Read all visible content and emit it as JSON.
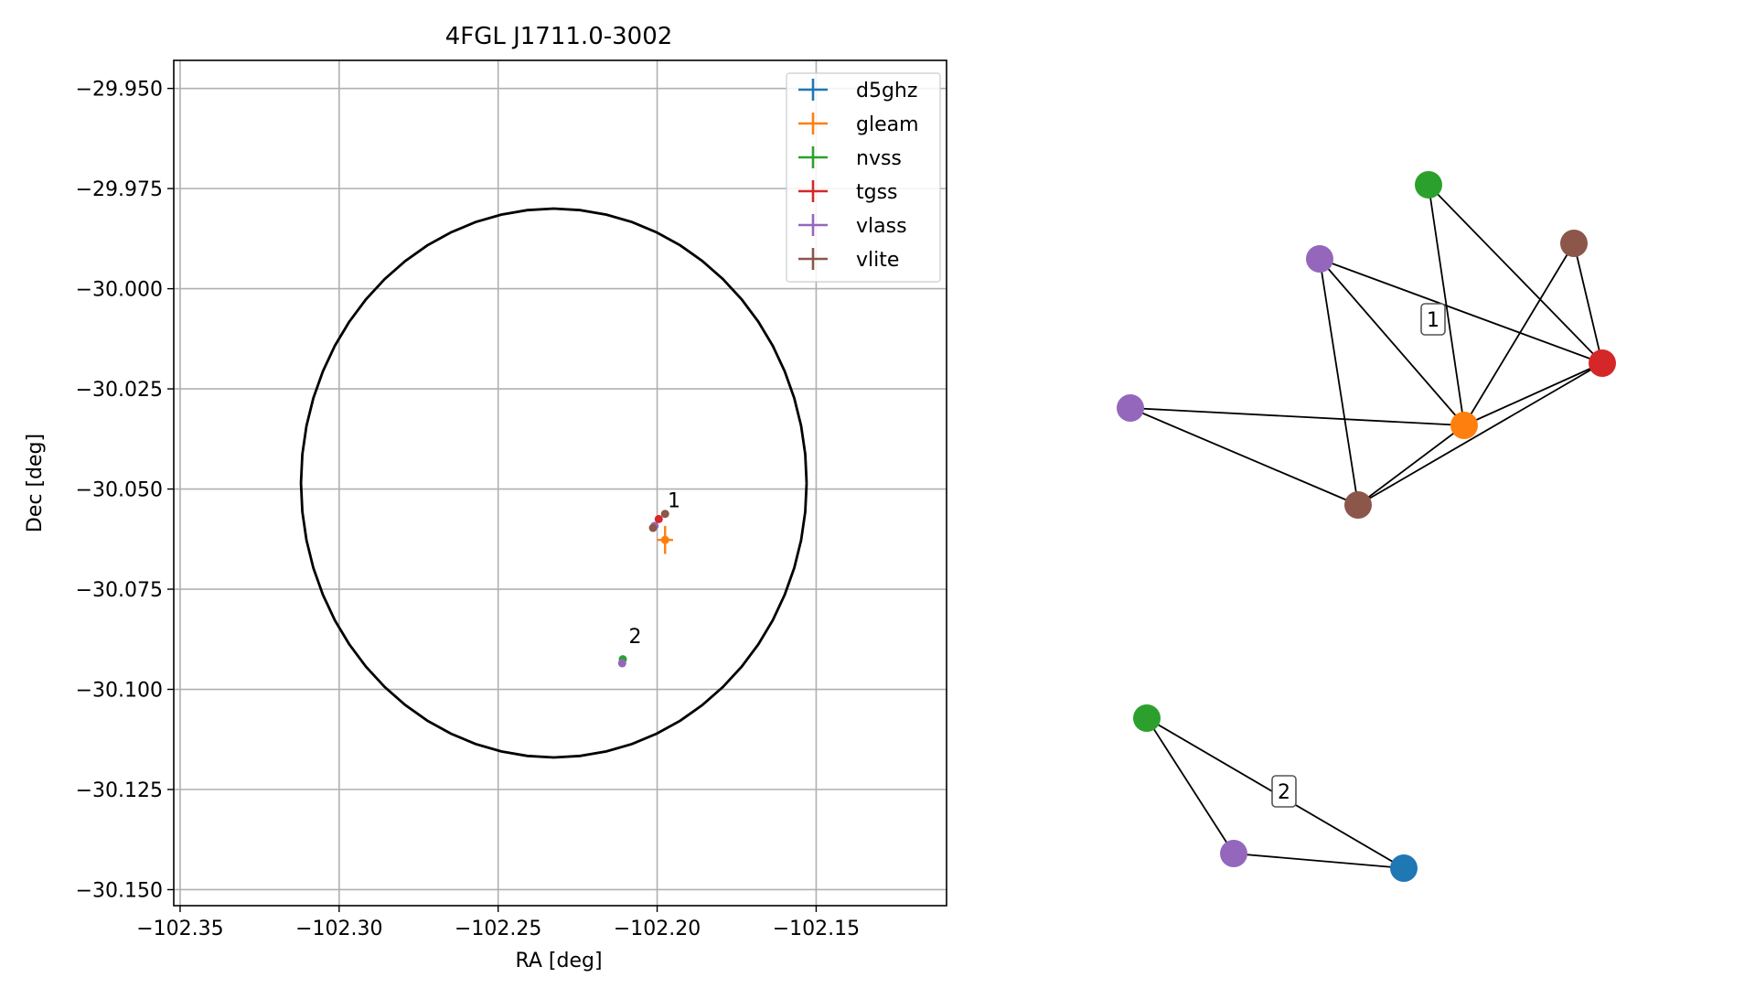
{
  "chart_data": [
    {
      "type": "scatter",
      "title": "4FGL J1711.0-3002",
      "xlabel": "RA [deg]",
      "ylabel": "Dec [deg]",
      "xlim": [
        -102.352,
        -102.109
      ],
      "ylim": [
        -30.154,
        -29.943
      ],
      "xticks": [
        -102.35,
        -102.3,
        -102.25,
        -102.2,
        -102.15
      ],
      "xtick_labels": [
        "−102.35",
        "−102.30",
        "−102.25",
        "−102.20",
        "−102.15"
      ],
      "yticks": [
        -29.95,
        -29.975,
        -30.0,
        -30.025,
        -30.05,
        -30.075,
        -30.1,
        -30.125,
        -30.15
      ],
      "ytick_labels": [
        "−29.950",
        "−29.975",
        "−30.000",
        "−30.025",
        "−30.050",
        "−30.075",
        "−30.100",
        "−30.125",
        "−30.150"
      ],
      "grid": true,
      "legend_position": "top-right",
      "circle": {
        "center_ra": -102.2325,
        "center_dec": -30.0485,
        "radius_ra": 0.0795,
        "radius_dec": 0.0685,
        "color": "#000000"
      },
      "series": [
        {
          "name": "d5ghz",
          "color": "#1f77b4",
          "points": []
        },
        {
          "name": "gleam",
          "color": "#ff7f0e",
          "points": [
            {
              "ra": -102.1975,
              "dec": -30.0627,
              "err_ra": 0.0025,
              "err_dec": 0.0035
            }
          ]
        },
        {
          "name": "nvss",
          "color": "#2ca02c",
          "points": [
            {
              "ra": -102.2108,
              "dec": -30.0925,
              "err_ra": 0.0003,
              "err_dec": 0.0003
            }
          ]
        },
        {
          "name": "tgss",
          "color": "#d62728",
          "points": [
            {
              "ra": -102.1995,
              "dec": -30.0575,
              "err_ra": 0.0002,
              "err_dec": 0.0002
            }
          ]
        },
        {
          "name": "vlass",
          "color": "#9467bd",
          "points": [
            {
              "ra": -102.2008,
              "dec": -30.0592,
              "err_ra": 0.0001,
              "err_dec": 0.0001
            },
            {
              "ra": -102.211,
              "dec": -30.0935,
              "err_ra": 0.0001,
              "err_dec": 0.0001
            }
          ]
        },
        {
          "name": "vlite",
          "color": "#8c564b",
          "points": [
            {
              "ra": -102.2013,
              "dec": -30.0597,
              "err_ra": 0.0003,
              "err_dec": 0.0003
            },
            {
              "ra": -102.1975,
              "dec": -30.0562,
              "err_ra": 0.0002,
              "err_dec": 0.0002
            }
          ]
        }
      ],
      "annotations": [
        {
          "text": "1",
          "ra": -102.1973,
          "dec": -30.0545
        },
        {
          "text": "2",
          "ra": -102.2095,
          "dec": -30.0885
        }
      ]
    },
    {
      "type": "network",
      "title": "",
      "nodes": [
        {
          "id": "n1",
          "color": "#2ca02c"
        },
        {
          "id": "n2",
          "color": "#9467bd"
        },
        {
          "id": "n3",
          "color": "#8c564b"
        },
        {
          "id": "n4",
          "color": "#d62728"
        },
        {
          "id": "n5",
          "color": "#9467bd"
        },
        {
          "id": "n6",
          "color": "#ff7f0e"
        },
        {
          "id": "n7",
          "color": "#8c564b"
        },
        {
          "id": "m1",
          "color": "#2ca02c"
        },
        {
          "id": "m2",
          "color": "#9467bd"
        },
        {
          "id": "m3",
          "color": "#1f77b4"
        }
      ],
      "edges": [
        [
          "n1",
          "n6"
        ],
        [
          "n1",
          "n4"
        ],
        [
          "n2",
          "n6"
        ],
        [
          "n2",
          "n4"
        ],
        [
          "n2",
          "n7"
        ],
        [
          "n3",
          "n4"
        ],
        [
          "n3",
          "n6"
        ],
        [
          "n5",
          "n6"
        ],
        [
          "n5",
          "n7"
        ],
        [
          "n6",
          "n7"
        ],
        [
          "n7",
          "n4"
        ],
        [
          "n6",
          "n4"
        ],
        [
          "m1",
          "m2"
        ],
        [
          "m1",
          "m3"
        ],
        [
          "m2",
          "m3"
        ]
      ],
      "group_labels": [
        "1",
        "2"
      ]
    }
  ]
}
